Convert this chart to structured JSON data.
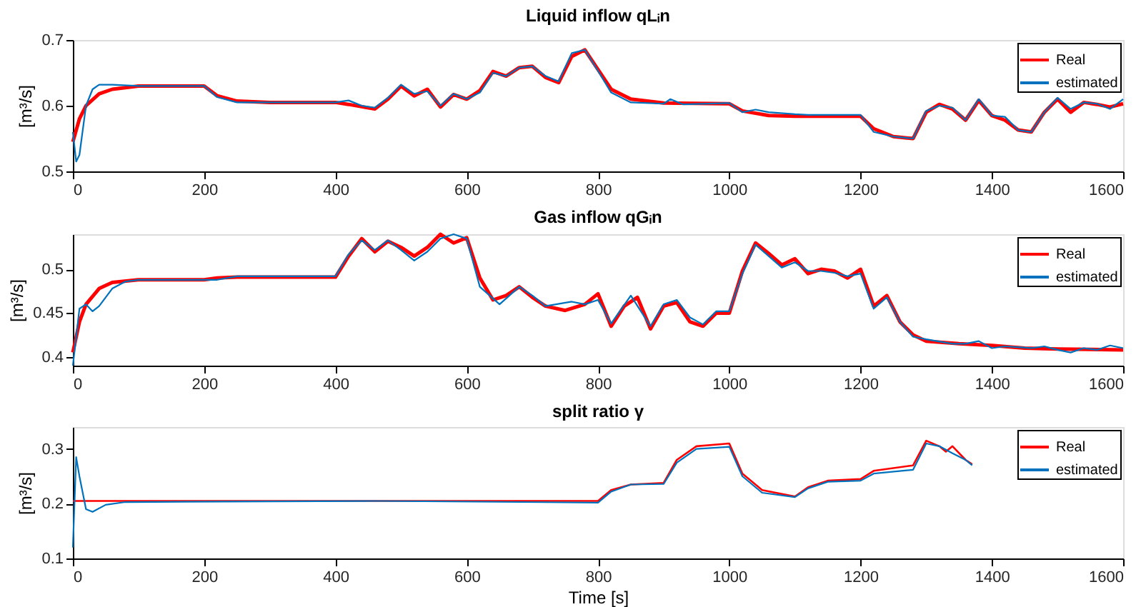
{
  "chart_data": [
    {
      "type": "line",
      "title": "Liquid inflow qLᵢn",
      "ylabel": "[m³/s]",
      "xlim": [
        0,
        1600
      ],
      "xticks": [
        0,
        200,
        400,
        600,
        800,
        1000,
        1200,
        1400,
        1600
      ],
      "ylim": [
        0.5,
        0.7
      ],
      "yticks": [
        0.5,
        0.6,
        0.7
      ],
      "legend": "top right",
      "grid": false,
      "series": [
        {
          "name": "Real",
          "color": "#ff0000",
          "x": [
            0,
            10,
            20,
            40,
            60,
            100,
            200,
            220,
            250,
            300,
            400,
            420,
            460,
            480,
            500,
            520,
            540,
            560,
            580,
            600,
            620,
            640,
            660,
            680,
            700,
            720,
            740,
            760,
            780,
            800,
            820,
            850,
            900,
            1000,
            1020,
            1060,
            1100,
            1200,
            1220,
            1250,
            1280,
            1300,
            1320,
            1340,
            1360,
            1380,
            1400,
            1420,
            1440,
            1460,
            1480,
            1500,
            1520,
            1540,
            1560,
            1580,
            1600
          ],
          "values": [
            0.545,
            0.58,
            0.6,
            0.618,
            0.625,
            0.63,
            0.63,
            0.615,
            0.607,
            0.605,
            0.605,
            0.602,
            0.595,
            0.61,
            0.63,
            0.615,
            0.625,
            0.598,
            0.617,
            0.61,
            0.623,
            0.652,
            0.645,
            0.658,
            0.66,
            0.643,
            0.635,
            0.675,
            0.685,
            0.655,
            0.625,
            0.61,
            0.604,
            0.603,
            0.592,
            0.585,
            0.584,
            0.584,
            0.565,
            0.553,
            0.55,
            0.59,
            0.602,
            0.595,
            0.578,
            0.608,
            0.585,
            0.578,
            0.563,
            0.56,
            0.59,
            0.61,
            0.59,
            0.605,
            0.602,
            0.598,
            0.603
          ]
        },
        {
          "name": "estimated",
          "color": "#0072bd",
          "x": [
            0,
            5,
            10,
            20,
            30,
            40,
            60,
            100,
            200,
            220,
            250,
            400,
            420,
            440,
            460,
            480,
            500,
            520,
            540,
            560,
            580,
            600,
            620,
            640,
            660,
            680,
            700,
            720,
            740,
            760,
            780,
            800,
            820,
            850,
            900,
            910,
            930,
            1000,
            1020,
            1040,
            1060,
            1100,
            1120,
            1200,
            1220,
            1250,
            1280,
            1300,
            1320,
            1340,
            1360,
            1380,
            1400,
            1420,
            1440,
            1460,
            1480,
            1500,
            1520,
            1540,
            1560,
            1580,
            1600
          ],
          "values": [
            0.56,
            0.515,
            0.525,
            0.6,
            0.625,
            0.632,
            0.632,
            0.63,
            0.63,
            0.613,
            0.605,
            0.605,
            0.608,
            0.6,
            0.597,
            0.612,
            0.632,
            0.618,
            0.622,
            0.6,
            0.618,
            0.61,
            0.62,
            0.65,
            0.645,
            0.658,
            0.66,
            0.645,
            0.637,
            0.68,
            0.685,
            0.653,
            0.62,
            0.605,
            0.603,
            0.61,
            0.602,
            0.604,
            0.59,
            0.594,
            0.59,
            0.587,
            0.586,
            0.586,
            0.56,
            0.553,
            0.55,
            0.592,
            0.6,
            0.597,
            0.578,
            0.61,
            0.585,
            0.583,
            0.563,
            0.56,
            0.59,
            0.612,
            0.595,
            0.605,
            0.603,
            0.595,
            0.61
          ]
        }
      ]
    },
    {
      "type": "line",
      "title": "Gas inflow qGᵢn",
      "ylabel": "[m³/s]",
      "xlim": [
        0,
        1600
      ],
      "xticks": [
        0,
        200,
        400,
        600,
        800,
        1000,
        1200,
        1400,
        1600
      ],
      "ylim": [
        0.39,
        0.54
      ],
      "yticks": [
        0.4,
        0.45,
        0.5
      ],
      "legend": "top right",
      "grid": false,
      "series": [
        {
          "name": "Real",
          "color": "#ff0000",
          "x": [
            0,
            10,
            20,
            40,
            60,
            100,
            200,
            220,
            250,
            400,
            420,
            440,
            460,
            480,
            500,
            520,
            540,
            560,
            580,
            600,
            620,
            640,
            660,
            680,
            700,
            720,
            750,
            780,
            800,
            820,
            840,
            860,
            880,
            900,
            920,
            940,
            960,
            980,
            1000,
            1020,
            1040,
            1060,
            1080,
            1100,
            1120,
            1140,
            1160,
            1180,
            1200,
            1220,
            1240,
            1260,
            1280,
            1300,
            1350,
            1400,
            1450,
            1500,
            1600
          ],
          "values": [
            0.405,
            0.44,
            0.46,
            0.478,
            0.485,
            0.488,
            0.488,
            0.49,
            0.491,
            0.491,
            0.515,
            0.535,
            0.52,
            0.532,
            0.525,
            0.515,
            0.525,
            0.54,
            0.53,
            0.536,
            0.49,
            0.465,
            0.47,
            0.48,
            0.468,
            0.458,
            0.453,
            0.46,
            0.472,
            0.435,
            0.458,
            0.468,
            0.432,
            0.458,
            0.462,
            0.44,
            0.435,
            0.45,
            0.45,
            0.498,
            0.53,
            0.518,
            0.505,
            0.512,
            0.495,
            0.5,
            0.498,
            0.49,
            0.5,
            0.458,
            0.47,
            0.44,
            0.425,
            0.418,
            0.415,
            0.413,
            0.41,
            0.409,
            0.408
          ]
        },
        {
          "name": "estimated",
          "color": "#0072bd",
          "x": [
            0,
            10,
            20,
            30,
            40,
            60,
            80,
            100,
            200,
            220,
            250,
            400,
            420,
            440,
            460,
            480,
            500,
            520,
            540,
            560,
            580,
            600,
            620,
            650,
            680,
            700,
            720,
            760,
            780,
            800,
            820,
            850,
            880,
            900,
            920,
            940,
            960,
            980,
            1000,
            1020,
            1040,
            1060,
            1080,
            1100,
            1120,
            1140,
            1160,
            1180,
            1200,
            1220,
            1240,
            1260,
            1280,
            1300,
            1340,
            1360,
            1380,
            1400,
            1420,
            1460,
            1480,
            1500,
            1520,
            1540,
            1560,
            1580,
            1600
          ],
          "values": [
            0.39,
            0.455,
            0.46,
            0.452,
            0.458,
            0.478,
            0.486,
            0.488,
            0.488,
            0.488,
            0.492,
            0.492,
            0.517,
            0.533,
            0.522,
            0.533,
            0.522,
            0.51,
            0.52,
            0.535,
            0.54,
            0.535,
            0.48,
            0.46,
            0.48,
            0.47,
            0.458,
            0.463,
            0.46,
            0.465,
            0.438,
            0.47,
            0.435,
            0.46,
            0.465,
            0.445,
            0.437,
            0.452,
            0.452,
            0.495,
            0.528,
            0.515,
            0.502,
            0.508,
            0.498,
            0.498,
            0.496,
            0.492,
            0.495,
            0.455,
            0.468,
            0.44,
            0.423,
            0.42,
            0.415,
            0.415,
            0.418,
            0.41,
            0.412,
            0.41,
            0.412,
            0.408,
            0.405,
            0.41,
            0.408,
            0.413,
            0.41
          ]
        }
      ]
    },
    {
      "type": "line",
      "title": "split ratio γ",
      "ylabel": "[m³/s]",
      "xlabel": "Time [s]",
      "xlim": [
        0,
        1600
      ],
      "xticks": [
        0,
        200,
        400,
        600,
        800,
        1000,
        1200,
        1400,
        1600
      ],
      "ylim": [
        0.1,
        0.34
      ],
      "yticks": [
        0.1,
        0.2,
        0.3
      ],
      "legend": "top right",
      "grid": false,
      "series": [
        {
          "name": "Real",
          "color": "#ff0000",
          "x": [
            0,
            800,
            820,
            850,
            900,
            920,
            950,
            1000,
            1020,
            1050,
            1100,
            1120,
            1150,
            1200,
            1220,
            1280,
            1300,
            1320,
            1330,
            1340,
            1360,
            1370
          ],
          "values": [
            0.205,
            0.205,
            0.225,
            0.235,
            0.238,
            0.28,
            0.305,
            0.31,
            0.255,
            0.225,
            0.213,
            0.23,
            0.242,
            0.245,
            0.26,
            0.27,
            0.315,
            0.305,
            0.295,
            0.305,
            0.28,
            0.272
          ]
        },
        {
          "name": "estimated",
          "color": "#0072bd",
          "x": [
            0,
            5,
            10,
            20,
            30,
            50,
            80,
            460,
            800,
            820,
            850,
            900,
            920,
            950,
            1000,
            1020,
            1050,
            1100,
            1120,
            1150,
            1200,
            1220,
            1280,
            1300,
            1320,
            1340,
            1360,
            1370
          ],
          "values": [
            0.12,
            0.285,
            0.25,
            0.19,
            0.185,
            0.198,
            0.203,
            0.205,
            0.202,
            0.222,
            0.235,
            0.236,
            0.275,
            0.3,
            0.304,
            0.25,
            0.22,
            0.212,
            0.228,
            0.24,
            0.242,
            0.255,
            0.262,
            0.31,
            0.305,
            0.292,
            0.28,
            0.27
          ]
        }
      ]
    }
  ]
}
